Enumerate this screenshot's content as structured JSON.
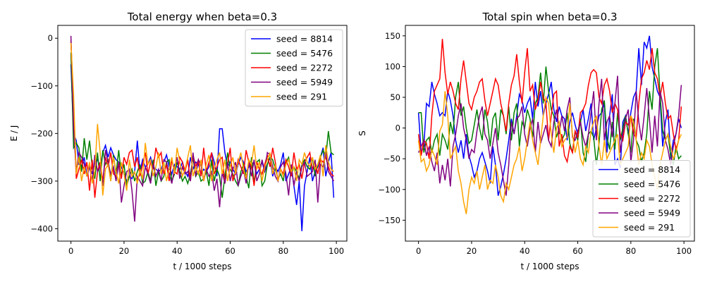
{
  "colors": {
    "seed_8814": "#0000ff",
    "seed_5476": "#008000",
    "seed_2272": "#ff0000",
    "seed_5949": "#800080",
    "seed_291": "#ffa500"
  },
  "chart_data": [
    {
      "type": "line",
      "title": "Total energy when beta=0.3",
      "xlabel": "t / 1000 steps",
      "ylabel": "E / J",
      "xlim": [
        -4.95,
        103.95
      ],
      "ylim": [
        -426,
        27
      ],
      "xticks": [
        0,
        20,
        40,
        60,
        80,
        100
      ],
      "yticks": [
        0,
        -100,
        -200,
        -300,
        -400
      ],
      "legend": "top-right",
      "grid": false,
      "x": "0..99 step 1",
      "series": [
        {
          "name": "seed = 8814",
          "color": "#0000ff",
          "values": [
            -55,
            -200,
            -215,
            -265,
            -270,
            -250,
            -290,
            -265,
            -285,
            -260,
            -255,
            -270,
            -240,
            -225,
            -250,
            -230,
            -245,
            -255,
            -260,
            -270,
            -285,
            -300,
            -290,
            -295,
            -280,
            -215,
            -280,
            -255,
            -270,
            -265,
            -250,
            -270,
            -275,
            -280,
            -275,
            -260,
            -245,
            -270,
            -285,
            -265,
            -270,
            -275,
            -260,
            -280,
            -290,
            -250,
            -275,
            -260,
            -265,
            -285,
            -275,
            -280,
            -270,
            -240,
            -260,
            -290,
            -190,
            -190,
            -240,
            -270,
            -260,
            -275,
            -285,
            -265,
            -250,
            -260,
            -280,
            -270,
            -265,
            -260,
            -285,
            -275,
            -260,
            -280,
            -265,
            -250,
            -290,
            -270,
            -280,
            -265,
            -240,
            -300,
            -285,
            -270,
            -310,
            -350,
            -300,
            -405,
            -310,
            -280,
            -250,
            -300,
            -280,
            -270,
            -250,
            -230,
            -290,
            -260,
            -240,
            -335
          ]
        },
        {
          "name": "seed = 5476",
          "color": "#008000",
          "values": [
            -30,
            -230,
            -220,
            -230,
            -280,
            -210,
            -255,
            -215,
            -270,
            -295,
            -240,
            -300,
            -235,
            -265,
            -255,
            -300,
            -245,
            -285,
            -235,
            -290,
            -265,
            -310,
            -290,
            -275,
            -300,
            -280,
            -265,
            -305,
            -300,
            -280,
            -300,
            -255,
            -310,
            -280,
            -300,
            -290,
            -260,
            -255,
            -300,
            -285,
            -260,
            -280,
            -300,
            -290,
            -305,
            -285,
            -250,
            -290,
            -280,
            -300,
            -295,
            -280,
            -310,
            -255,
            -300,
            -275,
            -290,
            -335,
            -290,
            -240,
            -275,
            -285,
            -300,
            -310,
            -280,
            -265,
            -290,
            -315,
            -250,
            -305,
            -260,
            -255,
            -310,
            -300,
            -265,
            -250,
            -255,
            -275,
            -295,
            -285,
            -300,
            -260,
            -250,
            -285,
            -270,
            -280,
            -295,
            -265,
            -255,
            -270,
            -275,
            -250,
            -290,
            -265,
            -250,
            -235,
            -250,
            -195,
            -240,
            -245
          ]
        },
        {
          "name": "seed = 2272",
          "color": "#ff0000",
          "values": [
            -5,
            -150,
            -295,
            -275,
            -255,
            -285,
            -260,
            -320,
            -255,
            -335,
            -280,
            -260,
            -300,
            -250,
            -270,
            -240,
            -285,
            -290,
            -260,
            -295,
            -250,
            -265,
            -240,
            -235,
            -270,
            -250,
            -290,
            -265,
            -240,
            -285,
            -260,
            -275,
            -230,
            -250,
            -240,
            -285,
            -265,
            -300,
            -255,
            -280,
            -285,
            -250,
            -260,
            -280,
            -255,
            -300,
            -245,
            -270,
            -255,
            -290,
            -230,
            -280,
            -260,
            -240,
            -285,
            -270,
            -255,
            -250,
            -305,
            -265,
            -230,
            -300,
            -280,
            -255,
            -270,
            -285,
            -235,
            -260,
            -270,
            -310,
            -260,
            -275,
            -285,
            -265,
            -245,
            -270,
            -230,
            -260,
            -300,
            -275,
            -285,
            -255,
            -270,
            -290,
            -240,
            -275,
            -265,
            -295,
            -260,
            -250,
            -240,
            -275,
            -260,
            -285,
            -255,
            -260,
            -250,
            -270,
            -285,
            -290
          ]
        },
        {
          "name": "seed = 5949",
          "color": "#800080",
          "values": [
            5,
            -190,
            -280,
            -240,
            -250,
            -265,
            -290,
            -270,
            -300,
            -245,
            -280,
            -270,
            -310,
            -235,
            -260,
            -285,
            -270,
            -300,
            -260,
            -345,
            -310,
            -280,
            -275,
            -320,
            -385,
            -290,
            -300,
            -310,
            -270,
            -285,
            -305,
            -265,
            -290,
            -275,
            -300,
            -255,
            -260,
            -285,
            -305,
            -275,
            -250,
            -295,
            -270,
            -285,
            -280,
            -300,
            -240,
            -290,
            -255,
            -265,
            -300,
            -275,
            -290,
            -280,
            -320,
            -295,
            -355,
            -280,
            -305,
            -260,
            -300,
            -275,
            -260,
            -310,
            -290,
            -275,
            -305,
            -260,
            -290,
            -255,
            -300,
            -285,
            -255,
            -280,
            -240,
            -245,
            -270,
            -290,
            -300,
            -270,
            -260,
            -285,
            -330,
            -265,
            -310,
            -280,
            -300,
            -270,
            -260,
            -290,
            -285,
            -280,
            -255,
            -345,
            -265,
            -270,
            -240,
            -280,
            -290,
            -300
          ]
        },
        {
          "name": "seed = 291",
          "color": "#ffa500",
          "values": [
            -10,
            -120,
            -285,
            -250,
            -300,
            -270,
            -290,
            -260,
            -305,
            -280,
            -180,
            -240,
            -330,
            -275,
            -265,
            -300,
            -250,
            -280,
            -305,
            -260,
            -285,
            -320,
            -255,
            -290,
            -280,
            -305,
            -275,
            -295,
            -220,
            -265,
            -255,
            -290,
            -270,
            -240,
            -285,
            -260,
            -300,
            -275,
            -250,
            -285,
            -230,
            -260,
            -290,
            -275,
            -250,
            -225,
            -290,
            -270,
            -285,
            -255,
            -300,
            -265,
            -245,
            -300,
            -275,
            -255,
            -240,
            -285,
            -255,
            -300,
            -270,
            -250,
            -285,
            -260,
            -240,
            -275,
            -295,
            -255,
            -265,
            -225,
            -275,
            -260,
            -300,
            -270,
            -255,
            -240,
            -285,
            -265,
            -300,
            -275,
            -290,
            -265,
            -255,
            -280,
            -270,
            -300,
            -255,
            -265,
            -240,
            -260,
            -270,
            -250,
            -275,
            -265,
            -245,
            -290,
            -225,
            -260,
            -275,
            -280
          ]
        }
      ]
    },
    {
      "type": "line",
      "title": "Total spin when beta=0.3",
      "xlabel": "t / 1000 steps",
      "ylabel": "S",
      "xlim": [
        -4.95,
        103.95
      ],
      "ylim": [
        -184,
        167
      ],
      "xticks": [
        0,
        20,
        40,
        60,
        80,
        100
      ],
      "yticks": [
        150,
        100,
        50,
        0,
        -50,
        -100,
        -150
      ],
      "legend": "lower-right",
      "grid": false,
      "x": "0..99 step 1",
      "series": [
        {
          "name": "seed = 8814",
          "color": "#0000ff",
          "values": [
            25,
            -40,
            -30,
            40,
            35,
            75,
            55,
            40,
            20,
            25,
            20,
            60,
            45,
            20,
            -20,
            -40,
            -20,
            -50,
            -10,
            -45,
            -60,
            -80,
            -70,
            -50,
            -40,
            -55,
            -70,
            -90,
            -30,
            -60,
            -110,
            -95,
            -75,
            -50,
            -20,
            15,
            -10,
            20,
            55,
            45,
            25,
            40,
            50,
            15,
            75,
            35,
            60,
            20,
            40,
            55,
            75,
            30,
            10,
            35,
            20,
            15,
            -20,
            10,
            25,
            5,
            -10,
            10,
            30,
            -5,
            15,
            40,
            -20,
            0,
            20,
            25,
            40,
            -40,
            20,
            55,
            -60,
            -50,
            -65,
            10,
            20,
            -10,
            25,
            50,
            60,
            130,
            70,
            140,
            130,
            150,
            100,
            80,
            60,
            50,
            -30,
            10,
            30,
            -50,
            -20,
            -10,
            15,
            0
          ]
        },
        {
          "name": "seed = 5476",
          "color": "#008000",
          "values": [
            25,
            25,
            -40,
            -20,
            -15,
            -40,
            -20,
            -10,
            -45,
            -10,
            -20,
            -35,
            10,
            -10,
            50,
            75,
            20,
            35,
            0,
            -25,
            -20,
            5,
            30,
            0,
            -20,
            30,
            10,
            -30,
            15,
            25,
            -20,
            30,
            20,
            -10,
            35,
            -20,
            25,
            40,
            -30,
            10,
            0,
            30,
            15,
            -15,
            40,
            50,
            90,
            40,
            100,
            60,
            30,
            20,
            -15,
            0,
            -20,
            -10,
            25,
            -25,
            -40,
            -5,
            -20,
            15,
            -40,
            -55,
            -10,
            -5,
            -15,
            -60,
            -25,
            30,
            45,
            -15,
            -35,
            10,
            -35,
            25,
            -20,
            0,
            20,
            -10,
            -40,
            15,
            -20,
            -30,
            -55,
            -40,
            -10,
            60,
            30,
            100,
            130,
            55,
            -5,
            -20,
            -10,
            -45,
            -60,
            -30,
            -50,
            -45
          ]
        },
        {
          "name": "seed = 2272",
          "color": "#ff0000",
          "values": [
            -10,
            -45,
            -20,
            -25,
            -50,
            20,
            60,
            70,
            80,
            145,
            90,
            55,
            75,
            60,
            40,
            30,
            80,
            110,
            75,
            40,
            30,
            50,
            60,
            75,
            80,
            45,
            20,
            40,
            60,
            80,
            70,
            40,
            20,
            -5,
            40,
            70,
            85,
            120,
            75,
            40,
            90,
            130,
            60,
            70,
            30,
            45,
            75,
            50,
            40,
            -20,
            20,
            55,
            60,
            -30,
            -10,
            -45,
            -55,
            -30,
            -40,
            -5,
            -15,
            25,
            30,
            40,
            70,
            90,
            95,
            90,
            50,
            40,
            70,
            80,
            60,
            25,
            40,
            30,
            -10,
            -20,
            10,
            5,
            20,
            -10,
            -15,
            40,
            80,
            90,
            110,
            95,
            130,
            90,
            80,
            50,
            75,
            40,
            15,
            20,
            -10,
            -35,
            -20,
            35
          ]
        },
        {
          "name": "seed = 5949",
          "color": "#800080",
          "values": [
            -40,
            -30,
            -20,
            -45,
            -30,
            -55,
            -70,
            -40,
            -90,
            -60,
            -85,
            -50,
            -95,
            -30,
            -10,
            20,
            40,
            0,
            -20,
            -50,
            -35,
            -40,
            -5,
            20,
            35,
            -10,
            -20,
            -50,
            -25,
            0,
            -40,
            -60,
            -85,
            -110,
            -60,
            10,
            -10,
            15,
            20,
            35,
            -10,
            -30,
            0,
            15,
            -40,
            10,
            -25,
            -10,
            5,
            -20,
            -30,
            10,
            30,
            -10,
            20,
            -5,
            30,
            50,
            -15,
            -20,
            -5,
            10,
            -15,
            -30,
            -10,
            25,
            60,
            -20,
            40,
            80,
            -20,
            10,
            20,
            -15,
            40,
            85,
            -40,
            -10,
            15,
            30,
            -55,
            -20,
            60,
            10,
            -20,
            20,
            65,
            15,
            -40,
            20,
            -30,
            60,
            40,
            -20,
            -35,
            -60,
            -30,
            -10,
            20,
            70
          ]
        },
        {
          "name": "seed = 291",
          "color": "#ffa500",
          "values": [
            -20,
            -55,
            -50,
            -70,
            -60,
            -35,
            -45,
            -60,
            -5,
            5,
            60,
            20,
            -50,
            -40,
            -30,
            -70,
            -90,
            -120,
            -140,
            -100,
            -80,
            -90,
            -70,
            -100,
            -80,
            -60,
            -100,
            -85,
            -90,
            -60,
            -80,
            -110,
            -120,
            -90,
            -100,
            -80,
            -60,
            -50,
            -30,
            -70,
            -50,
            -20,
            10,
            -20,
            -40,
            -60,
            -20,
            20,
            50,
            40,
            -10,
            -40,
            0,
            10,
            -30,
            -20,
            -15,
            40,
            -10,
            -40,
            -20,
            -50,
            -60,
            -30,
            -40,
            -5,
            10,
            20,
            -30,
            -60,
            -20,
            -50,
            -40,
            -30,
            -20,
            -10,
            -60,
            -50,
            -40,
            -30,
            20,
            10,
            -20,
            -60,
            -40,
            -50,
            -20,
            -30,
            -60,
            -80,
            -100,
            -60,
            -40,
            -20,
            -10,
            -30,
            -50,
            -40,
            -20,
            -10
          ]
        }
      ]
    }
  ]
}
